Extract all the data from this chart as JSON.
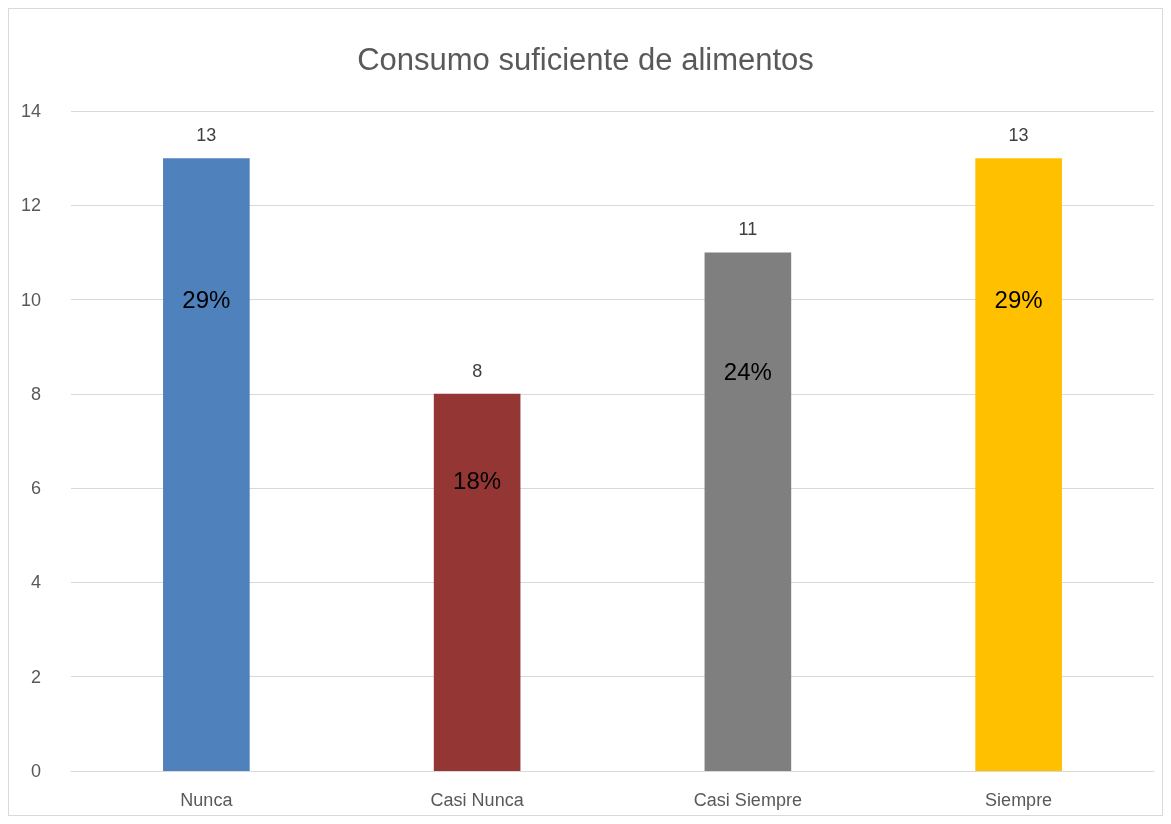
{
  "chart_data": {
    "type": "bar",
    "title": "Consumo suficiente de alimentos",
    "categories": [
      "Nunca",
      "Casi Nunca",
      "Casi Siempre",
      "Siempre"
    ],
    "values": [
      13,
      8,
      11,
      13
    ],
    "colors": [
      "#4f81bd",
      "#943634",
      "#7f7f7f",
      "#ffc000"
    ],
    "data_labels": true,
    "annotations": [
      "29%",
      "18%",
      "24%",
      "29%"
    ],
    "ylim": [
      0,
      14
    ],
    "yticks": [
      0,
      2,
      4,
      6,
      8,
      10,
      12,
      14
    ],
    "grid": "y"
  }
}
